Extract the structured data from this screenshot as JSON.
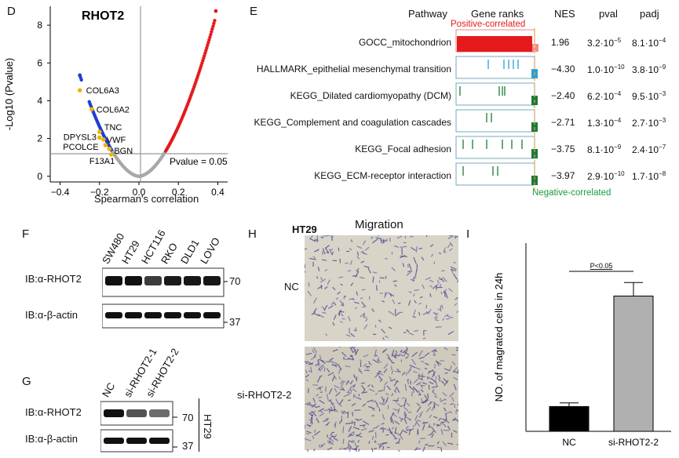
{
  "panel_letters": {
    "d": "D",
    "e": "E",
    "f": "F",
    "g": "G",
    "h": "H",
    "i": "I"
  },
  "colors": {
    "positive": "#e41a1c",
    "negative": "#1b7a3a",
    "highlight": "#f0b400",
    "blue": "#1f3ad6",
    "bar_nc": "#000000",
    "bar_si": "#b0b0b0"
  },
  "panel_d": {
    "title": "RHOT2",
    "xlabel": "Spearman's correlation",
    "ylabel": "-Log10 (Pvalue)",
    "xticks": [
      "−0.4",
      "−0.2",
      "0.0",
      "0.2",
      "0.4"
    ],
    "yticks": [
      "0",
      "2",
      "4",
      "6",
      "8"
    ],
    "threshold_label": "Pvalue = 0.05",
    "genes": [
      {
        "name": "COL6A3",
        "x": -0.3,
        "y": 4.55
      },
      {
        "name": "COL6A2",
        "x": -0.24,
        "y": 3.55
      },
      {
        "name": "TNC",
        "x": -0.2,
        "y": 2.35
      },
      {
        "name": "DPYSL3",
        "x": -0.2,
        "y": 2.05
      },
      {
        "name": "VWF",
        "x": -0.18,
        "y": 1.95
      },
      {
        "name": "PCOLCE",
        "x": -0.17,
        "y": 1.65
      },
      {
        "name": "BGN",
        "x": -0.15,
        "y": 1.45
      },
      {
        "name": "F13A1",
        "x": -0.14,
        "y": 1.15
      }
    ]
  },
  "chart_data": [
    {
      "type": "scatter",
      "title": "RHOT2",
      "xlabel": "Spearman's correlation",
      "ylabel": "-Log10 (Pvalue)",
      "xlim": [
        -0.45,
        0.45
      ],
      "ylim": [
        -0.3,
        9
      ],
      "threshold_y": 1.3,
      "note": "Pvalue = 0.05"
    },
    {
      "type": "bar",
      "categories": [
        "NC",
        "si-RHOT2-2"
      ],
      "values": [
        55,
        300
      ],
      "errors": [
        8,
        30
      ],
      "ylabel": "NO. of magrated cells in 24h",
      "annotation": "P<0.05"
    }
  ],
  "panel_e": {
    "headers": {
      "pathway": "Pathway",
      "ranks": "Gene ranks",
      "nes": "NES",
      "pval": "pval",
      "padj": "padj"
    },
    "positive_label": "Positive-correlated",
    "negative_label": "Negative-correlated",
    "rows": [
      {
        "name": "GOCC_mitochondrion",
        "nes": "1.96",
        "pval_m": "3.2·10",
        "pval_e": "−5",
        "padj_m": "8.1·10",
        "padj_e": "−4"
      },
      {
        "name": "HALLMARK_epithelial mesenchymal transition",
        "nes": "−4.30",
        "pval_m": "1.0·10",
        "pval_e": "−10",
        "padj_m": "3.8·10",
        "padj_e": "−9"
      },
      {
        "name": "KEGG_Dilated cardiomyopathy (DCM)",
        "nes": "−2.40",
        "pval_m": "6.2·10",
        "pval_e": "−4",
        "padj_m": "9.5·10",
        "padj_e": "−3"
      },
      {
        "name": "KEGG_Complement and coagulation cascades",
        "nes": "−2.71",
        "pval_m": "1.3·10",
        "pval_e": "−4",
        "padj_m": "2.7·10",
        "padj_e": "−3"
      },
      {
        "name": "KEGG_Focal adhesion",
        "nes": "−3.75",
        "pval_m": "8.1·10",
        "pval_e": "−9",
        "padj_m": "2.4·10",
        "padj_e": "−7"
      },
      {
        "name": "KEGG_ECM-receptor interaction",
        "nes": "−3.97",
        "pval_m": "2.9·10",
        "pval_e": "−10",
        "padj_m": "1.7·10",
        "padj_e": "−8"
      }
    ]
  },
  "panel_f": {
    "lanes": [
      "SW480",
      "HT29",
      "HCT116",
      "RKO",
      "DLD1",
      "LOVO"
    ],
    "blot1": "IB:α-RHOT2",
    "blot2": "IB:α-β-actin",
    "mw1": "70",
    "mw2": "37"
  },
  "panel_g": {
    "lanes": [
      "NC",
      "si-RHOT2-1",
      "si-RHOT2-2"
    ],
    "blot1": "IB:α-RHOT2",
    "blot2": "IB:α-β-actin",
    "mw1": "70",
    "mw2": "37",
    "cell": "HT29"
  },
  "panel_h": {
    "cell": "HT29",
    "title": "Migration",
    "row1": "NC",
    "row2": "si-RHOT2-2"
  },
  "panel_i": {
    "ylabel": "NO. of magrated cells in 24h",
    "categories": [
      "NC",
      "si-RHOT2-2"
    ],
    "sig": "P<0.05"
  }
}
